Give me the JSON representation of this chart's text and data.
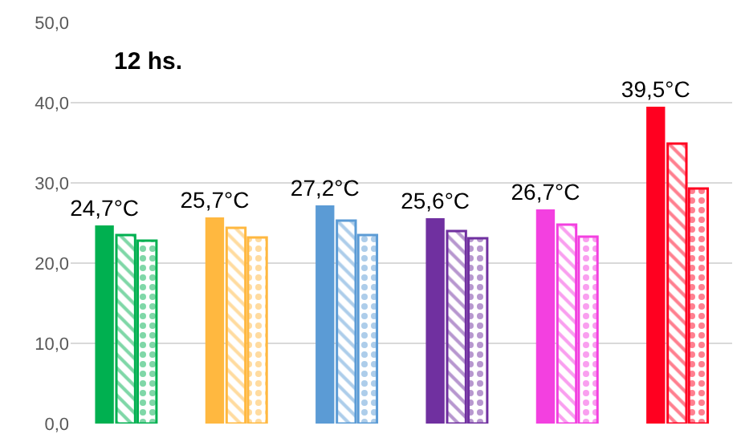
{
  "chart_data": {
    "type": "bar",
    "title": "12 hs.",
    "categories": [
      null,
      null,
      null,
      null,
      null,
      null
    ],
    "series": [
      {
        "colors": [
          "#00b050",
          "#ffb840",
          "#5b9bd5",
          "#7030a0",
          "#f340e0",
          "#ff0020"
        ],
        "values": [
          24.7,
          25.7,
          27.2,
          25.6,
          26.7,
          39.5
        ],
        "value_labels": [
          "24,7°C",
          "25,7°C",
          "27,2°C",
          "25,6°C",
          "26,7°C",
          "39,5°C"
        ]
      },
      {
        "colors": [
          "#00b050",
          "#ffb840",
          "#5b9bd5",
          "#7030a0",
          "#f340e0",
          "#ff0020"
        ],
        "values": [
          23.5,
          24.4,
          25.3,
          24.0,
          24.8,
          34.9
        ]
      },
      {
        "colors": [
          "#00b050",
          "#ffb840",
          "#5b9bd5",
          "#7030a0",
          "#f340e0",
          "#ff0020"
        ],
        "values": [
          22.8,
          23.2,
          23.5,
          23.1,
          23.3,
          29.3
        ]
      }
    ],
    "ylim": [
      0,
      50
    ],
    "yticks": [
      {
        "value": 0,
        "label": "0,0"
      },
      {
        "value": 10,
        "label": "10,0"
      },
      {
        "value": 20,
        "label": "20,0"
      },
      {
        "value": 30,
        "label": "30,0"
      },
      {
        "value": 40,
        "label": "40,0"
      },
      {
        "value": 50,
        "label": "50,0"
      }
    ],
    "grid": "y"
  }
}
